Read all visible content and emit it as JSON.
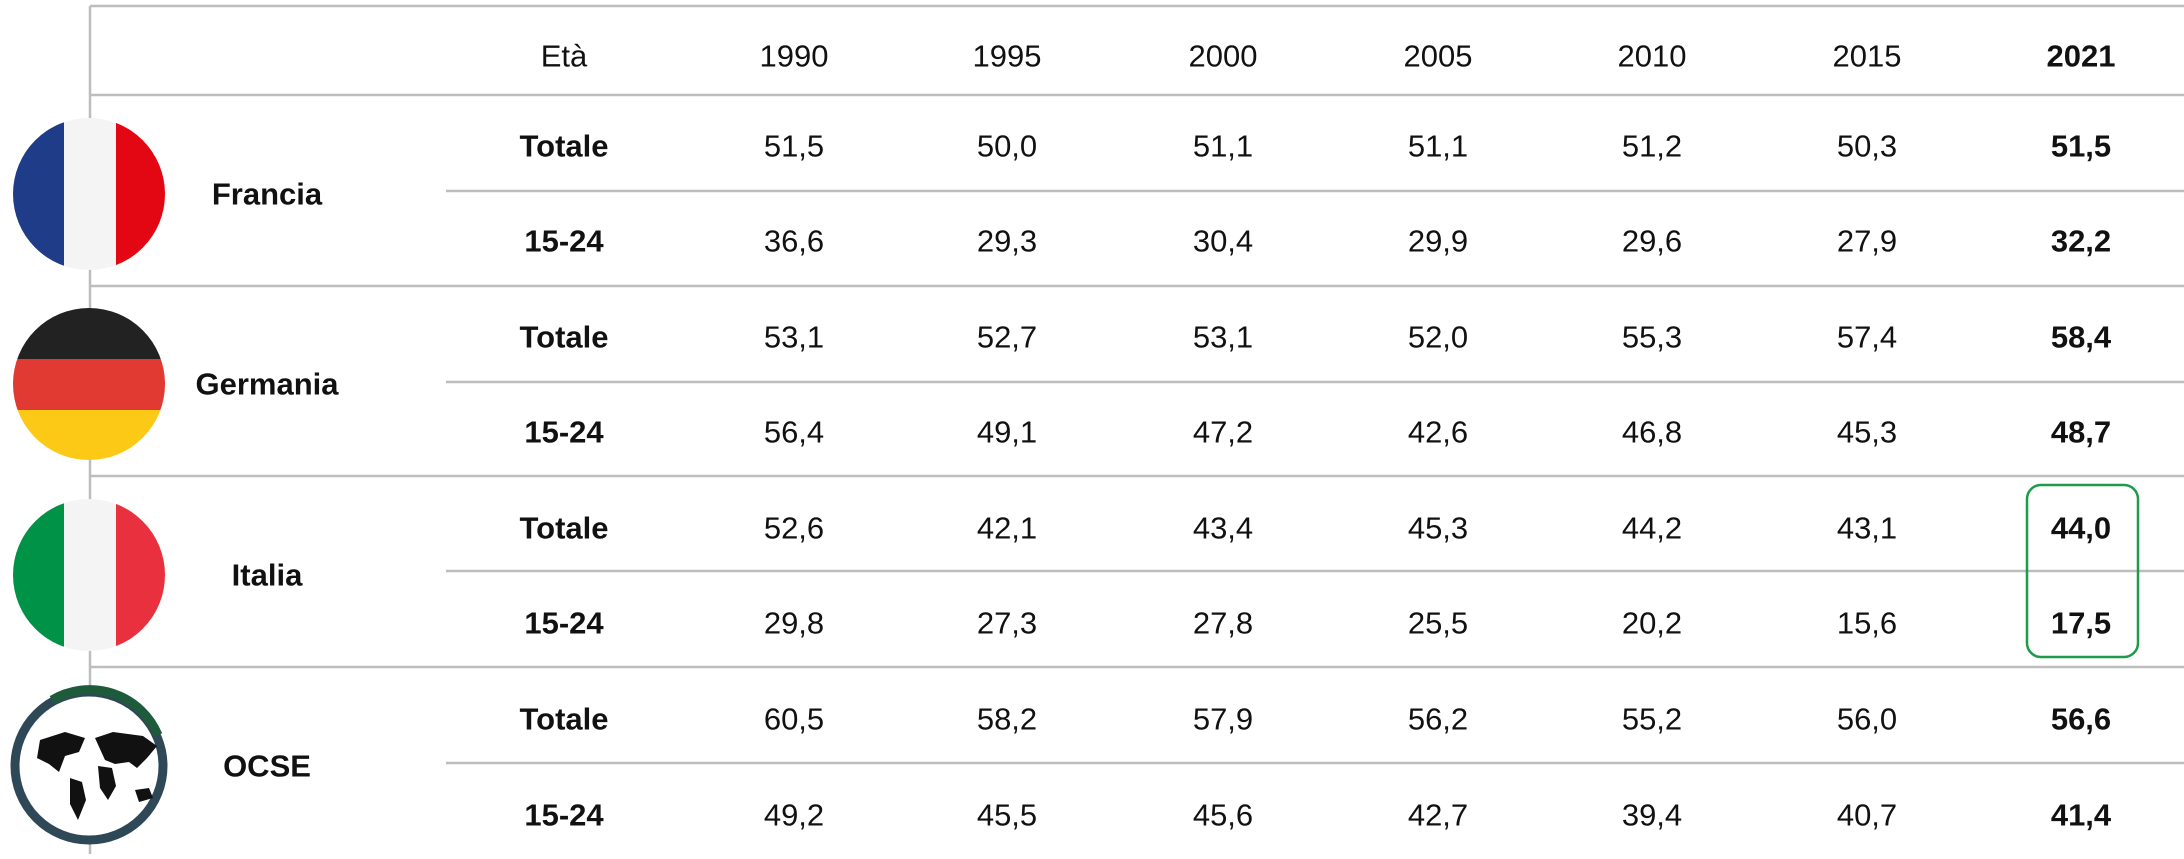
{
  "table": {
    "header": [
      "Età",
      "1990",
      "1995",
      "2000",
      "2005",
      "2010",
      "2015",
      "2021"
    ],
    "groups": [
      {
        "country": "Francia",
        "rows": [
          [
            "Totale",
            "51,5",
            "50,0",
            "51,1",
            "51,1",
            "51,2",
            "50,3",
            "51,5"
          ],
          [
            "15-24",
            "36,6",
            "29,3",
            "30,4",
            "29,9",
            "29,6",
            "27,9",
            "32,2"
          ]
        ]
      },
      {
        "country": "Germania",
        "rows": [
          [
            "Totale",
            "53,1",
            "52,7",
            "53,1",
            "52,0",
            "55,3",
            "57,4",
            "58,4"
          ],
          [
            "15-24",
            "56,4",
            "49,1",
            "47,2",
            "42,6",
            "46,8",
            "45,3",
            "48,7"
          ]
        ]
      },
      {
        "country": "Italia",
        "rows": [
          [
            "Totale",
            "52,6",
            "42,1",
            "43,4",
            "45,3",
            "44,2",
            "43,1",
            "44,0"
          ],
          [
            "15-24",
            "29,8",
            "27,3",
            "27,8",
            "25,5",
            "20,2",
            "15,6",
            "17,5"
          ]
        ]
      },
      {
        "country": "OCSE",
        "rows": [
          [
            "Totale",
            "60,5",
            "58,2",
            "57,9",
            "56,2",
            "55,2",
            "56,0",
            "56,6"
          ],
          [
            "15-24",
            "49,2",
            "45,5",
            "45,6",
            "42,7",
            "39,4",
            "40,7",
            "41,4"
          ]
        ]
      }
    ]
  }
}
